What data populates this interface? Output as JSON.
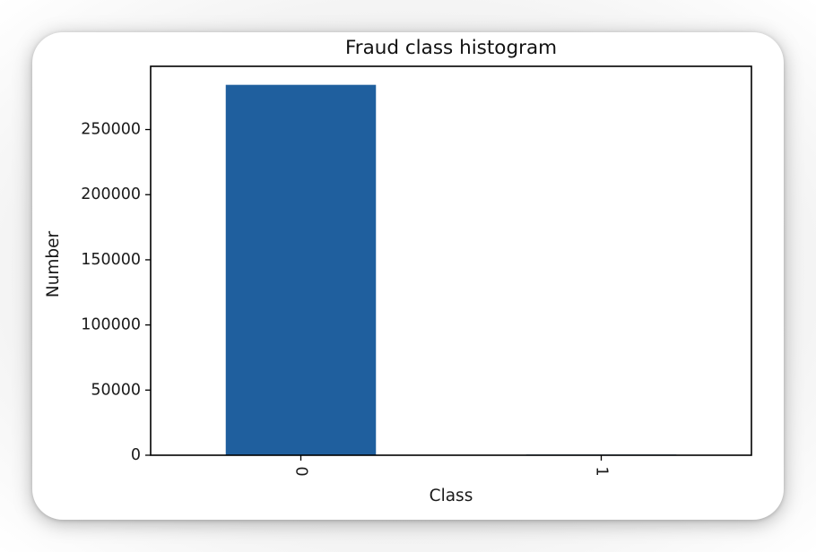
{
  "chart_data": {
    "type": "bar",
    "title": "Fraud class histogram",
    "xlabel": "Class",
    "ylabel": "Number",
    "categories": [
      "0",
      "1"
    ],
    "values": [
      284315,
      492
    ],
    "ylim": [
      0,
      298531
    ],
    "yticks": [
      0,
      50000,
      100000,
      150000,
      200000,
      250000
    ],
    "bar_color": "#1f5f9e",
    "grid": false,
    "legend": false,
    "xtick_rotation": 90
  }
}
